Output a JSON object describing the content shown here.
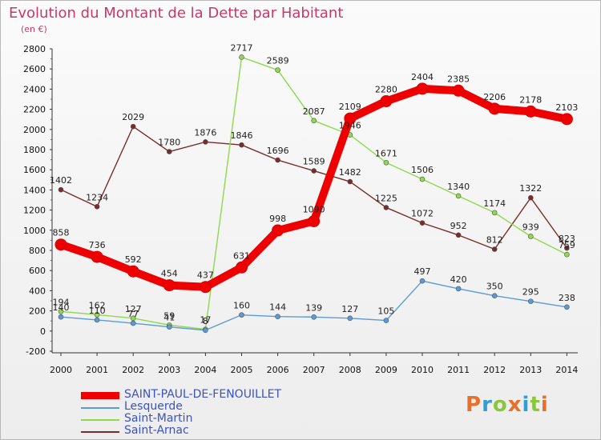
{
  "header": {
    "title": "Evolution du Montant de la Dette par Habitant",
    "subtitle": "(en €)"
  },
  "logo": {
    "text": "Proxiti",
    "colors": [
      "#e8702a",
      "#2f9fd6",
      "#8cc63f",
      "#e8702a",
      "#2f9fd6",
      "#8cc63f",
      "#e8702a"
    ]
  },
  "chart_data": {
    "type": "line",
    "title": "Evolution du Montant de la Dette par Habitant",
    "subtitle": "(en €)",
    "categories": [
      "2000",
      "2001",
      "2002",
      "2003",
      "2004",
      "2005",
      "2006",
      "2007",
      "2008",
      "2009",
      "2010",
      "2011",
      "2012",
      "2013",
      "2014"
    ],
    "ylim": [
      -200,
      2800
    ],
    "yticks": [
      -200,
      0,
      200,
      400,
      600,
      800,
      1000,
      1200,
      1400,
      1600,
      1800,
      2000,
      2200,
      2400,
      2600,
      2800
    ],
    "grid": false,
    "legend_position": "bottom-left",
    "series": [
      {
        "name": "Saint-Arnac",
        "color": "#7a2b2b",
        "values": [
          1402,
          1234,
          2029,
          1780,
          1876,
          1846,
          1696,
          1589,
          1482,
          1225,
          1072,
          952,
          812,
          1322,
          823
        ]
      },
      {
        "name": "Saint-Martin",
        "color": "#8ed94c",
        "values": [
          194,
          162,
          127,
          59,
          17,
          2717,
          2589,
          2087,
          1946,
          1671,
          1506,
          1340,
          1174,
          939,
          759
        ]
      },
      {
        "name": "Lesquerde",
        "color": "#5b9bd5",
        "values": [
          140,
          110,
          77,
          41,
          8,
          160,
          144,
          139,
          127,
          105,
          497,
          420,
          350,
          295,
          238
        ]
      },
      {
        "name": "SAINT-PAUL-DE-FENOUILLET",
        "color": "#ee0000",
        "values": [
          858,
          736,
          592,
          454,
          437,
          631,
          998,
          1090,
          2109,
          2280,
          2404,
          2385,
          2206,
          2178,
          2103
        ]
      }
    ],
    "legend": [
      "SAINT-PAUL-DE-FENOUILLET",
      "Lesquerde",
      "Saint-Martin",
      "Saint-Arnac"
    ]
  }
}
